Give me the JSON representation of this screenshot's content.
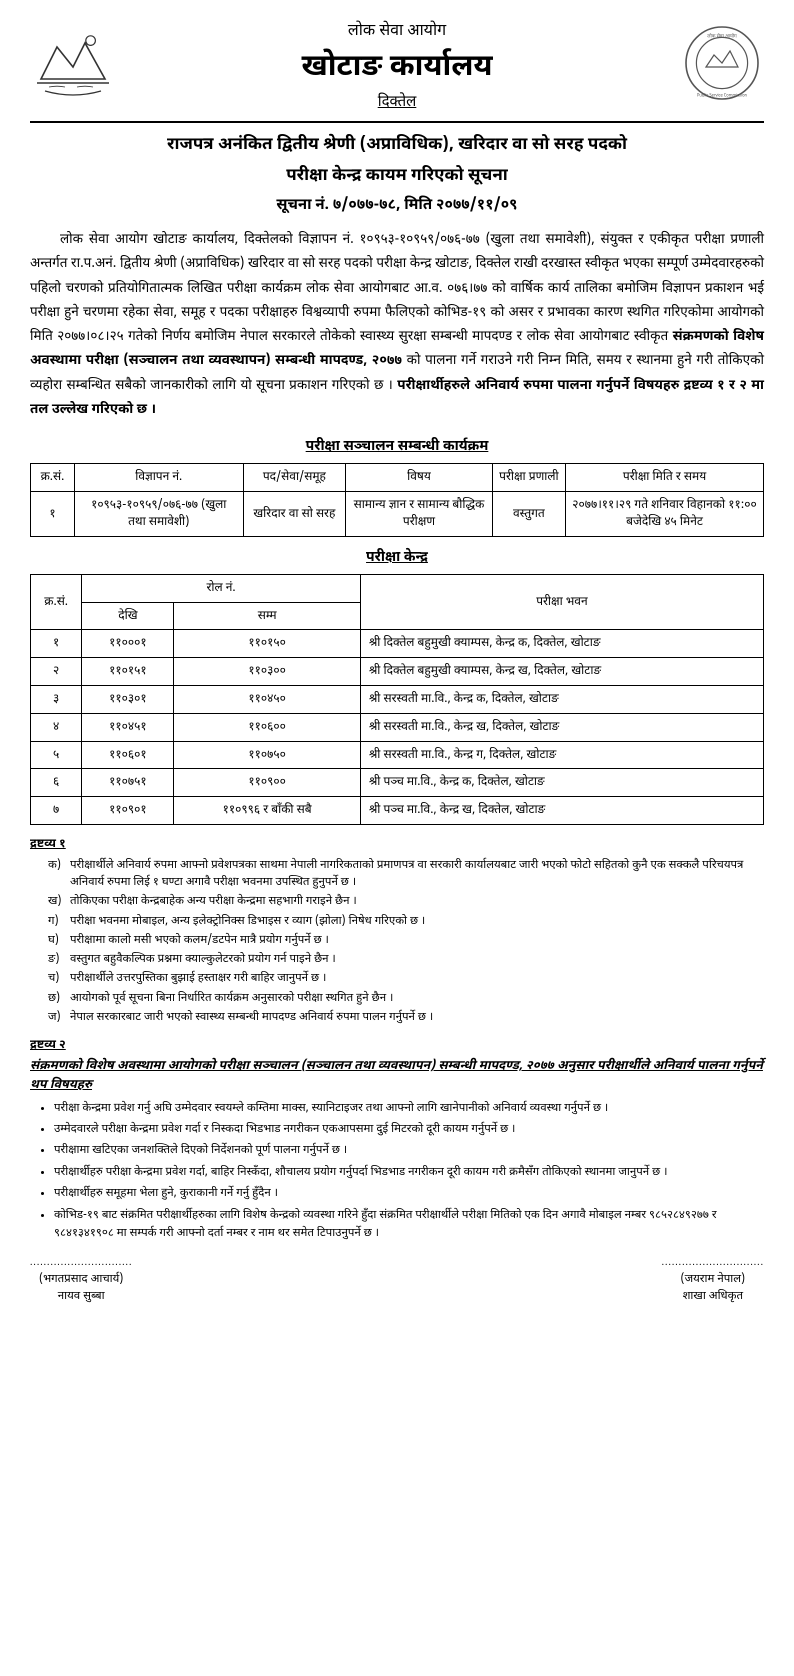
{
  "header": {
    "org_small": "लोक सेवा आयोग",
    "office": "खोटाङ कार्यालय",
    "location": "दिक्तेल"
  },
  "title_line1": "राजपत्र अनंकित द्वितीय श्रेणी (अप्राविधिक), खरिदार वा सो सरह पदको",
  "title_line2": "परीक्षा केन्द्र कायम गरिएको सूचना",
  "notice_no": "सूचना नं. ७/०७७-७८, मिति २०७७/११/०९",
  "body_p1_a": "लोक सेवा आयोग खोटाङ कार्यालय, दिक्तेलको विज्ञापन नं. १०९५३-१०९५९/०७६-७७ (खुला तथा समावेशी), संयुक्त र एकीकृत परीक्षा प्रणाली अन्तर्गत रा.प.अनं. द्वितीय श्रेणी (अप्राविधिक) खरिदार वा सो सरह पदको परीक्षा केन्द्र खोटाङ, दिक्तेल राखी दरखास्त स्वीकृत भएका सम्पूर्ण उम्मेदवारहरुको पहिलो चरणको प्रतियोगितात्मक लिखित परीक्षा कार्यक्रम लोक सेवा आयोगबाट आ.व. ०७६।७७ को वार्षिक कार्य तालिका बमोजिम विज्ञापन प्रकाशन भई परीक्षा हुने चरणमा रहेका सेवा, समूह र पदका परीक्षाहरु विश्वव्यापी रुपमा फैलिएको कोभिड-१९ को असर र प्रभावका कारण स्थगित गरिएकोमा आयोगको मिति २०७७।०८।२५ गतेको निर्णय बमोजिम नेपाल सरकारले तोकेको स्वास्थ्य सुरक्षा सम्बन्धी मापदण्ड र लोक सेवा आयोगबाट स्वीकृत ",
  "body_bold1": "संक्रमणको विशेष अवस्थामा परीक्षा (सञ्चालन तथा व्यवस्थापन) सम्बन्धी मापदण्ड, २०७७",
  "body_p1_b": " को पालना गर्ने गराउने गरी निम्न मिति, समय र स्थानमा हुने गरी तोकिएको व्यहोरा सम्बन्धित सबैको जानकारीको लागि यो सूचना प्रकाशन गरिएको छ । ",
  "body_bold2": "परीक्षार्थीहरुले अनिवार्य रुपमा पालना गर्नुपर्ने विषयहरु द्रष्टव्य १ र २ मा तल उल्लेख गरिएको छ ।",
  "schedule_heading": "परीक्षा सञ्चालन सम्बन्धी कार्यक्रम",
  "schedule_table": {
    "headers": [
      "क्र.सं.",
      "विज्ञापन नं.",
      "पद/सेवा/समूह",
      "विषय",
      "परीक्षा प्रणाली",
      "परीक्षा मिति र समय"
    ],
    "row": {
      "sn": "१",
      "ad": "१०९५३-१०९५९/०७६-७७ (खुला तथा समावेशी)",
      "post": "खरिदार वा सो सरह",
      "subject": "सामान्य ज्ञान र सामान्य बौद्धिक परीक्षण",
      "system": "वस्तुगत",
      "datetime": "२०७७।११।२९ गते शनिवार विहानको ११:०० बजेदेखि ४५ मिनेट"
    }
  },
  "center_heading": "परीक्षा केन्द्र",
  "center_table": {
    "headers": {
      "sn": "क्र.सं.",
      "roll": "रोल नं.",
      "from": "देखि",
      "to": "सम्म",
      "venue": "परीक्षा भवन"
    },
    "rows": [
      {
        "sn": "१",
        "from": "११०००१",
        "to": "११०१५०",
        "venue": "श्री दिक्तेल बहुमुखी क्याम्पस, केन्द्र क, दिक्तेल, खोटाङ"
      },
      {
        "sn": "२",
        "from": "११०१५१",
        "to": "११०३००",
        "venue": "श्री दिक्तेल बहुमुखी क्याम्पस, केन्द्र ख, दिक्तेल, खोटाङ"
      },
      {
        "sn": "३",
        "from": "११०३०१",
        "to": "११०४५०",
        "venue": "श्री सरस्वती मा.वि., केन्द्र क, दिक्तेल, खोटाङ"
      },
      {
        "sn": "४",
        "from": "११०४५१",
        "to": "११०६००",
        "venue": "श्री सरस्वती मा.वि., केन्द्र ख, दिक्तेल, खोटाङ"
      },
      {
        "sn": "५",
        "from": "११०६०१",
        "to": "११०७५०",
        "venue": "श्री सरस्वती मा.वि., केन्द्र ग, दिक्तेल, खोटाङ"
      },
      {
        "sn": "६",
        "from": "११०७५१",
        "to": "११०९००",
        "venue": "श्री पञ्च मा.वि., केन्द्र क, दिक्तेल, खोटाङ"
      },
      {
        "sn": "७",
        "from": "११०९०१",
        "to": "११०९९६ र बाँकी सबै",
        "venue": "श्री पञ्च मा.वि., केन्द्र ख, दिक्तेल, खोटाङ"
      }
    ]
  },
  "note1_heading": "द्रष्टव्य १",
  "note1_items": [
    {
      "m": "क)",
      "t": "परीक्षार्थीले अनिवार्य रुपमा आफ्नो प्रवेशपत्रका साथमा नेपाली नागरिकताको प्रमाणपत्र वा सरकारी कार्यालयबाट जारी भएको फोटो सहितको कुनै एक सक्कलै परिचयपत्र अनिवार्य रुपमा लिई १ घण्टा अगावै परीक्षा भवनमा उपस्थित हुनुपर्ने छ ।"
    },
    {
      "m": "ख)",
      "t": "तोकिएका परीक्षा केन्द्रबाहेक अन्य परीक्षा केन्द्रमा सहभागी गराइने छैन ।"
    },
    {
      "m": "ग)",
      "t": "परीक्षा भवनमा मोबाइल, अन्य इलेक्ट्रोनिक्स डिभाइस र व्याग (झोला) निषेध गरिएको छ ।"
    },
    {
      "m": "घ)",
      "t": "परीक्षामा कालो मसी भएको कलम/डटपेन मात्रै प्रयोग गर्नुपर्ने छ ।"
    },
    {
      "m": "ङ)",
      "t": "वस्तुगत बहुवैकल्पिक प्रश्नमा क्याल्कुलेटरको प्रयोग गर्न पाइने छैन ।"
    },
    {
      "m": "च)",
      "t": "परीक्षार्थीले उत्तरपुस्तिका बुझाई हस्ताक्षर गरी बाहिर जानुपर्ने छ ।"
    },
    {
      "m": "छ)",
      "t": "आयोगको पूर्व सूचना बिना निर्धारित कार्यक्रम अनुसारको परीक्षा स्थगित हुने छैन ।"
    },
    {
      "m": "ज)",
      "t": "नेपाल सरकारबाट जारी भएको स्वास्थ्य सम्बन्धी मापदण्ड अनिवार्य रुपमा पालन गर्नुपर्ने छ ।"
    }
  ],
  "note2_heading": "द्रष्टव्य २",
  "note2_subheading": "संक्रमणको विशेष अवस्थामा आयोगको परीक्षा सञ्चालन (सञ्चालन तथा व्यवस्थापन) सम्बन्धी मापदण्ड, २०७७ अनुसार परीक्षार्थीले अनिवार्य पालना गर्नुपर्ने थप विषयहरु",
  "note2_items": [
    "परीक्षा केन्द्रमा प्रवेश गर्नु अघि उम्मेदवार स्वयम्ले कम्तिमा माक्स, स्यानिटाइजर तथा आफ्नो लागि खानेपानीको अनिवार्य व्यवस्था गर्नुपर्ने छ ।",
    "उम्मेदवारले परीक्षा केन्द्रमा प्रवेश गर्दा र निस्कदा भिडभाड नगरीकन एकआपसमा दुई मिटरको दूरी कायम गर्नुपर्ने छ ।",
    "परीक्षामा खटिएका जनशक्तिले दिएको निर्देशनको पूर्ण पालना गर्नुपर्ने छ ।",
    "परीक्षार्थीहरु परीक्षा केन्द्रमा प्रवेश गर्दा, बाहिर निस्कँदा, शौचालय प्रयोग गर्नुपर्दा भिडभाड नगरीकन दूरी कायम गरी क्रमैसँग तोकिएको स्थानमा जानुपर्ने छ ।",
    "परीक्षार्थीहरु समूहमा भेला हुने, कुराकानी गर्ने गर्नु हुँदैन ।",
    "कोभिड-१९ बाट संक्रमित परीक्षार्थीहरुका लागि विशेष केन्द्रको व्यवस्था गरिने हुँदा संक्रमित परीक्षार्थीले परीक्षा मितिको एक दिन अगावै मोबाइल नम्बर ९८५२८४९२७७ र ९८४१३४१९०८ मा सम्पर्क गरी आफ्नो दर्ता नम्बर र नाम थर समेत टिपाउनुपर्ने छ ।"
  ],
  "signatures": {
    "left": {
      "name": "(भगतप्रसाद आचार्य)",
      "title": "नायव सुब्बा"
    },
    "right": {
      "name": "(जयराम नेपाल)",
      "title": "शाखा अधिकृत"
    }
  }
}
